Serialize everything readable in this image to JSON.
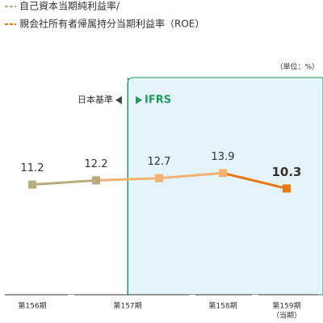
{
  "chart_data": {
    "type": "line",
    "unit_label": "（単位：%）",
    "jgaap_label": "日本基準",
    "ifrs_label": "IFRS",
    "categories": [
      "第156期",
      "第157期",
      null,
      "第158期",
      "第159期"
    ],
    "current_label": "（当期）",
    "series": [
      {
        "name": "自己資本当期純利益率/",
        "color": "#b9ac7c",
        "values": [
          11.2,
          12.2,
          null,
          null,
          null
        ]
      },
      {
        "name": "親会社所有者帰属持分当期利益率（ROE）",
        "color": "#e8780e",
        "past_color": "#f5b26e",
        "values": [
          null,
          null,
          12.7,
          13.9,
          10.3
        ]
      }
    ],
    "ylim": [
      -10,
      40
    ]
  }
}
